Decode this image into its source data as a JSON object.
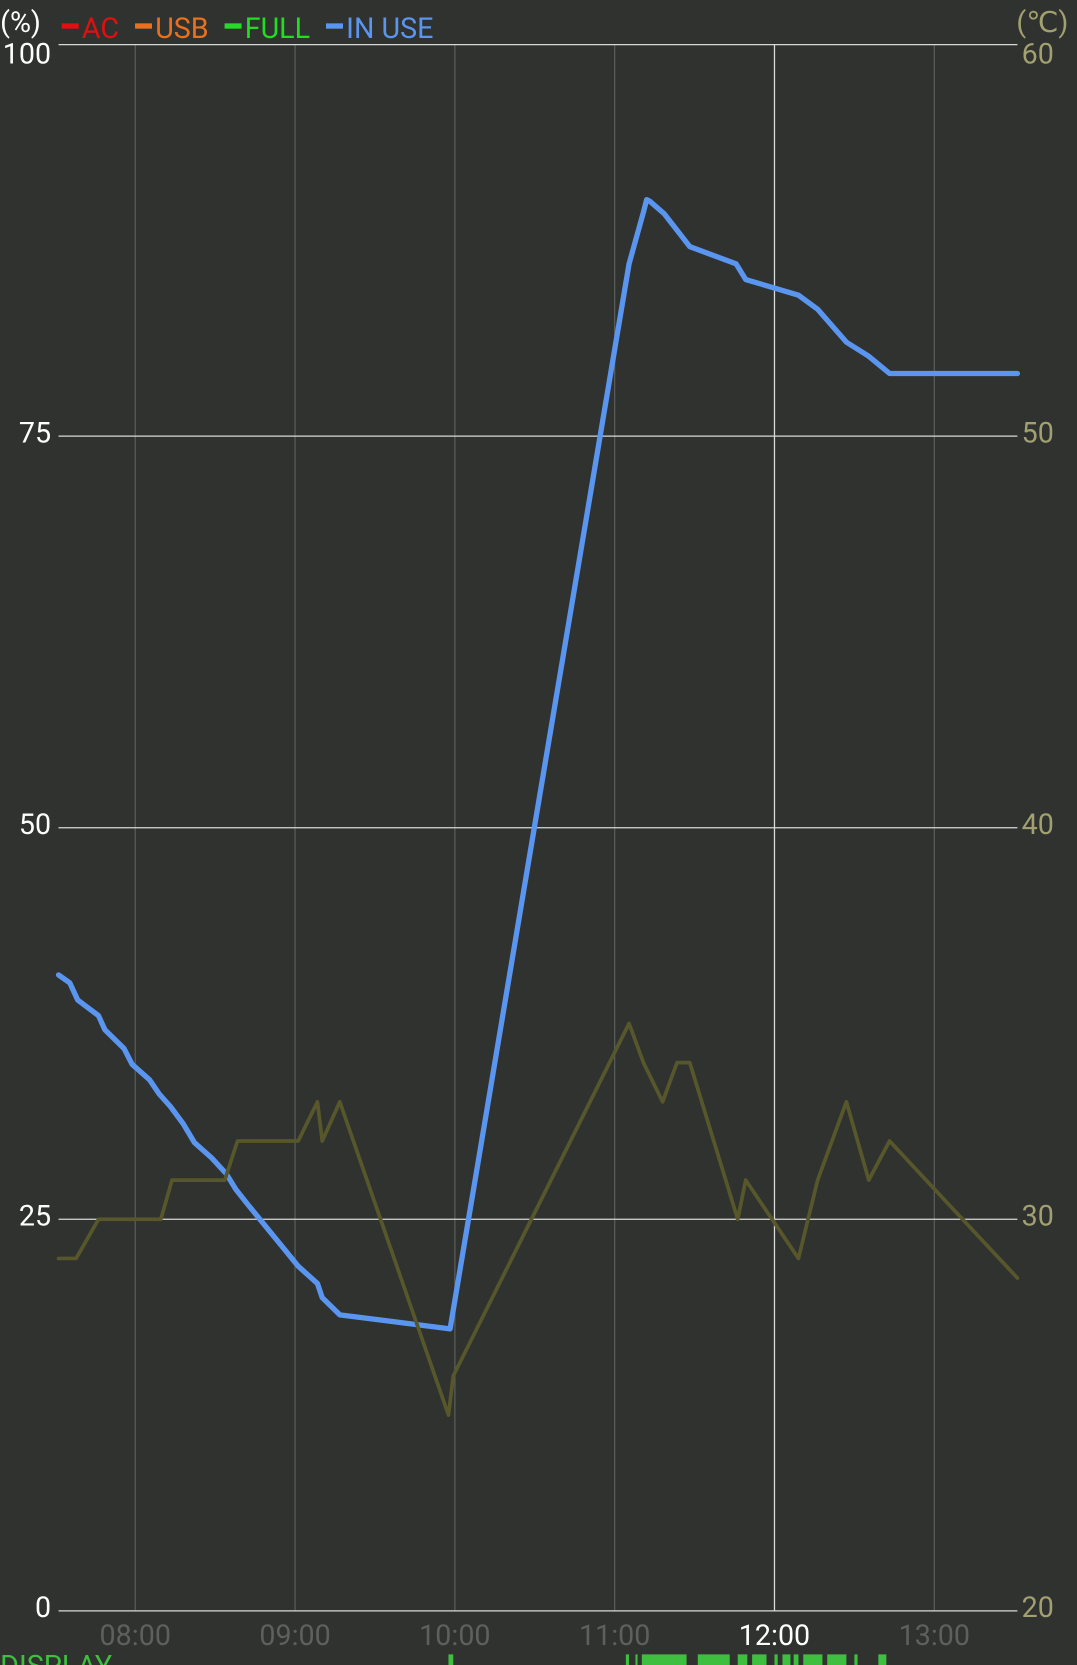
{
  "chart_data": {
    "type": "line",
    "ylabel": "(%)",
    "y2label": "(℃)",
    "xlim": [
      7.52,
      13.52
    ],
    "xticks": [
      {
        "value": 8,
        "label": "08:00"
      },
      {
        "value": 9,
        "label": "09:00"
      },
      {
        "value": 10,
        "label": "10:00"
      },
      {
        "value": 11,
        "label": "11:00"
      },
      {
        "value": 12,
        "label": "12:00"
      },
      {
        "value": 13,
        "label": "13:00"
      }
    ],
    "ylim": [
      0,
      100
    ],
    "yticks": [
      0,
      25,
      50,
      75,
      100
    ],
    "y2lim": [
      20,
      60
    ],
    "y2ticks": [
      20,
      30,
      40,
      50,
      60
    ],
    "grid": true,
    "series": [
      {
        "name": "AC",
        "color": "#e01010",
        "x": [],
        "values": []
      },
      {
        "name": "USB",
        "color": "#e8701e",
        "x": [],
        "values": []
      },
      {
        "name": "FULL",
        "color": "#22dd22",
        "x": [],
        "values": []
      },
      {
        "name": "IN USE",
        "color": "#5a95f0",
        "x": [
          7.52,
          7.59,
          7.64,
          7.77,
          7.81,
          7.93,
          7.98,
          8.09,
          8.15,
          8.22,
          8.3,
          8.37,
          8.48,
          8.57,
          8.63,
          8.7,
          8.78,
          8.94,
          9.02,
          9.14,
          9.17,
          9.28,
          9.97,
          11.09,
          11.18,
          11.2,
          11.22,
          11.31,
          11.47,
          11.76,
          11.82,
          12.15,
          12.27,
          12.45,
          12.59,
          12.72,
          13.52
        ],
        "values": [
          40.6,
          40.1,
          39.0,
          38.0,
          37.1,
          35.9,
          34.9,
          33.9,
          33.0,
          32.2,
          31.1,
          29.9,
          28.9,
          27.9,
          26.9,
          26.0,
          25.0,
          23.0,
          22.0,
          20.9,
          20.0,
          18.9,
          18.0,
          86.0,
          89.3,
          90.1,
          90.0,
          89.2,
          87.1,
          86.0,
          85.0,
          84.0,
          83.1,
          81.0,
          80.1,
          79.0,
          79.0
        ]
      },
      {
        "color": "#57572b",
        "axis": "y2",
        "x": [
          7.52,
          7.63,
          7.77,
          8.16,
          8.23,
          8.56,
          8.64,
          9.02,
          9.14,
          9.17,
          9.28,
          9.96,
          9.99,
          11.09,
          11.18,
          11.3,
          11.39,
          11.47,
          11.77,
          11.82,
          12.15,
          12.27,
          12.45,
          12.59,
          12.72,
          13.52
        ],
        "values": [
          29,
          29,
          30,
          30,
          31,
          31,
          32,
          32,
          33,
          32,
          33,
          25,
          26,
          35,
          34,
          33,
          34,
          34,
          30,
          31,
          29,
          31,
          33,
          31,
          32,
          28.5
        ]
      }
    ],
    "display": {
      "label": "DISPLAY",
      "color": "#3fbf3f",
      "intervals": [
        [
          9.96,
          9.99
        ],
        [
          11.07,
          11.09
        ],
        [
          11.13,
          11.14
        ],
        [
          11.17,
          11.45
        ],
        [
          11.52,
          11.72
        ],
        [
          11.77,
          11.83
        ],
        [
          11.86,
          11.95
        ],
        [
          12.0,
          12.02
        ],
        [
          12.05,
          12.1
        ],
        [
          12.12,
          12.15
        ],
        [
          12.18,
          12.3
        ],
        [
          12.33,
          12.45
        ],
        [
          12.5,
          12.52
        ],
        [
          12.65,
          12.7
        ]
      ]
    }
  }
}
